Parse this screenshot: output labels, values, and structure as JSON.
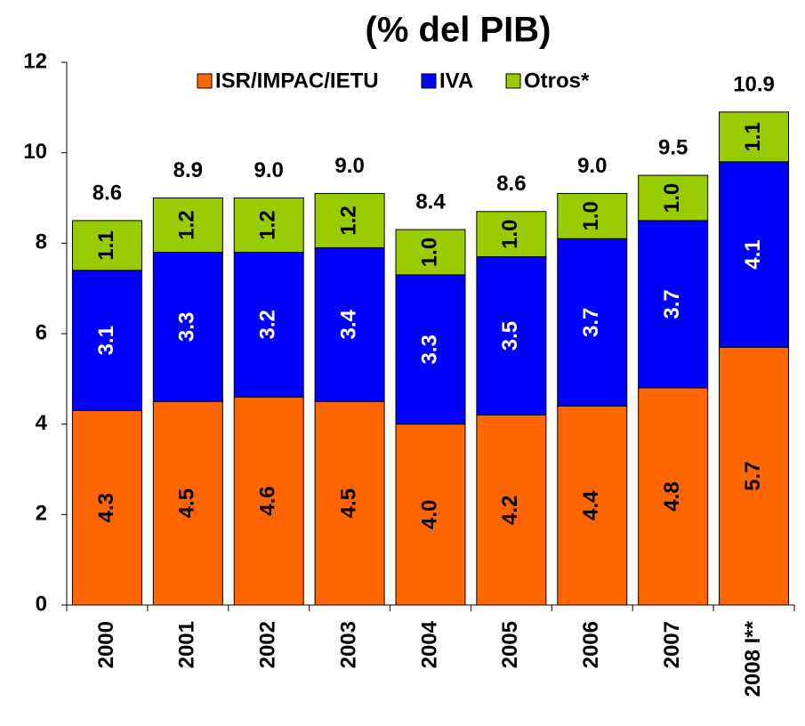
{
  "chart_data": {
    "type": "stacked_bar",
    "title": "(% del PIB)",
    "categories": [
      "2000",
      "2001",
      "2002",
      "2003",
      "2004",
      "2005",
      "2006",
      "2007",
      "2008 I**"
    ],
    "series": [
      {
        "name": "ISR/IMPAC/IETU",
        "color": "#ff6600",
        "label_color": "#000000",
        "values": [
          4.3,
          4.5,
          4.6,
          4.5,
          4.0,
          4.2,
          4.4,
          4.8,
          5.7
        ],
        "value_labels": [
          "4.3",
          "4.5",
          "4.6",
          "4.5",
          "4.0",
          "4.2",
          "4.4",
          "4.8",
          "5.7"
        ]
      },
      {
        "name": "IVA",
        "color": "#0000ff",
        "label_color": "#ffffff",
        "values": [
          3.1,
          3.3,
          3.2,
          3.4,
          3.3,
          3.5,
          3.7,
          3.7,
          4.1
        ],
        "value_labels": [
          "3.1",
          "3.3",
          "3.2",
          "3.4",
          "3.3",
          "3.5",
          "3.7",
          "3.7",
          "4.1"
        ]
      },
      {
        "name": "Otros*",
        "color": "#99cc00",
        "label_color": "#000000",
        "values": [
          1.1,
          1.2,
          1.2,
          1.2,
          1.0,
          1.0,
          1.0,
          1.0,
          1.1
        ],
        "value_labels": [
          "1.1",
          "1.2",
          "1.2",
          "1.2",
          "1.0",
          "1.0",
          "1.0",
          "1.0",
          "1.1"
        ]
      }
    ],
    "totals": [
      "8.6",
      "8.9",
      "9.0",
      "9.0",
      "8.4",
      "8.6",
      "9.0",
      "9.5",
      "10.9"
    ],
    "ylim": [
      0,
      12
    ],
    "yticks": [
      0,
      2,
      4,
      6,
      8,
      10,
      12
    ]
  }
}
